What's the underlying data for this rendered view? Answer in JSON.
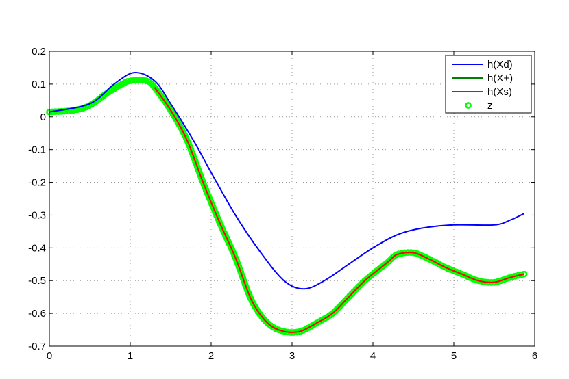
{
  "chart_data": {
    "type": "line",
    "xlim": [
      0,
      6
    ],
    "ylim": [
      -0.7,
      0.2
    ],
    "grid": true,
    "legend_placement": "top-right",
    "x_ticks": [
      "0",
      "1",
      "2",
      "3",
      "4",
      "5",
      "6"
    ],
    "y_ticks": [
      "0.2",
      "0.1",
      "0",
      "-0.1",
      "-0.2",
      "-0.3",
      "-0.4",
      "-0.5",
      "-0.6",
      "-0.7"
    ],
    "series": [
      {
        "name": "h(Xd)",
        "color": "#0000ff",
        "style": "line",
        "x": [
          0,
          0.5,
          0.8,
          1.05,
          1.3,
          1.5,
          1.8,
          2.0,
          2.3,
          2.6,
          2.9,
          3.15,
          3.4,
          3.7,
          4.0,
          4.3,
          4.6,
          5.0,
          5.5,
          5.7,
          5.87
        ],
        "y": [
          0.015,
          0.04,
          0.1,
          0.135,
          0.11,
          0.04,
          -0.08,
          -0.17,
          -0.3,
          -0.41,
          -0.5,
          -0.525,
          -0.5,
          -0.45,
          -0.4,
          -0.36,
          -0.34,
          -0.33,
          -0.33,
          -0.315,
          -0.295
        ]
      },
      {
        "name": "h(X+)",
        "color": "#008000",
        "style": "line",
        "x": [
          1.3,
          1.5,
          1.7,
          1.9,
          2.1,
          2.3,
          2.5,
          2.7,
          2.9,
          3.1,
          3.3,
          3.5,
          3.7,
          3.9,
          4.1,
          4.2,
          4.3,
          4.5,
          4.7,
          4.9,
          5.1,
          5.3,
          5.5,
          5.7,
          5.87
        ],
        "y": [
          0.09,
          0.02,
          -0.07,
          -0.2,
          -0.32,
          -0.43,
          -0.56,
          -0.63,
          -0.655,
          -0.655,
          -0.63,
          -0.6,
          -0.55,
          -0.5,
          -0.46,
          -0.44,
          -0.42,
          -0.415,
          -0.435,
          -0.46,
          -0.48,
          -0.5,
          -0.505,
          -0.49,
          -0.48
        ]
      },
      {
        "name": "h(Xs)",
        "color": "#ff0000",
        "style": "line",
        "x": [
          1.3,
          1.5,
          1.7,
          1.9,
          2.1,
          2.3,
          2.5,
          2.7,
          2.9,
          3.1,
          3.3,
          3.5,
          3.7,
          3.9,
          4.1,
          4.2,
          4.3,
          4.5,
          4.7,
          4.9,
          5.1,
          5.3,
          5.5,
          5.7,
          5.87
        ],
        "y": [
          0.09,
          0.02,
          -0.07,
          -0.2,
          -0.32,
          -0.43,
          -0.56,
          -0.63,
          -0.655,
          -0.655,
          -0.63,
          -0.6,
          -0.55,
          -0.5,
          -0.46,
          -0.44,
          -0.42,
          -0.415,
          -0.435,
          -0.46,
          -0.48,
          -0.5,
          -0.505,
          -0.49,
          -0.48
        ]
      },
      {
        "name": "z",
        "color": "#00ff00",
        "style": "markers",
        "x": [
          0,
          0.3,
          0.5,
          0.7,
          0.9,
          1.0,
          1.2,
          1.3,
          1.5,
          1.7,
          1.9,
          2.1,
          2.3,
          2.5,
          2.7,
          2.9,
          3.1,
          3.3,
          3.5,
          3.7,
          3.9,
          4.1,
          4.2,
          4.3,
          4.5,
          4.7,
          4.9,
          5.1,
          5.3,
          5.5,
          5.7,
          5.87
        ],
        "y": [
          0.015,
          0.02,
          0.035,
          0.07,
          0.1,
          0.11,
          0.11,
          0.09,
          0.02,
          -0.07,
          -0.2,
          -0.32,
          -0.43,
          -0.56,
          -0.63,
          -0.655,
          -0.655,
          -0.63,
          -0.6,
          -0.55,
          -0.5,
          -0.46,
          -0.44,
          -0.42,
          -0.415,
          -0.435,
          -0.46,
          -0.48,
          -0.5,
          -0.505,
          -0.49,
          -0.48
        ]
      }
    ]
  }
}
